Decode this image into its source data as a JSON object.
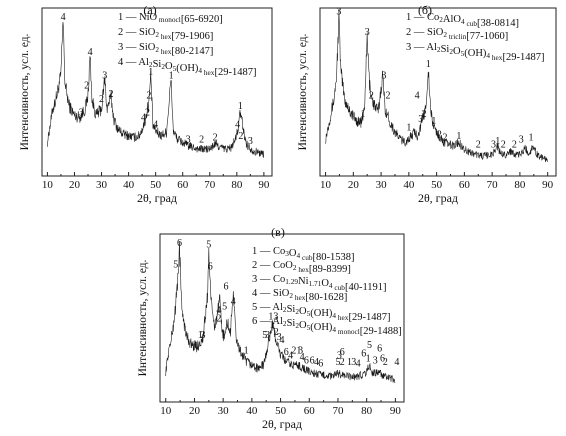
{
  "chart_data": [
    {
      "type": "line",
      "panel_label": "(а)",
      "xlabel": "2θ, град",
      "ylabel": "Интенсивность, усл. ед.",
      "xlim": [
        8,
        93
      ],
      "ylim": [
        0,
        100
      ],
      "y_ticks_shown": false,
      "x_ticks": [
        "10",
        "20",
        "30",
        "40",
        "50",
        "60",
        "70",
        "80",
        "90"
      ],
      "grid": false,
      "legend_position": "top-right",
      "legend": [
        {
          "num": "1",
          "dash": "—",
          "formula": "NiO",
          "sub": "monocl",
          "card": "[65-6920]"
        },
        {
          "num": "2",
          "dash": "—",
          "formula": "SiO",
          "sub2": "2",
          "sub": "hex",
          "card": "[79-1906]"
        },
        {
          "num": "3",
          "dash": "—",
          "formula": "SiO",
          "sub2": "2",
          "sub": "hex",
          "card": "[80-2147]"
        },
        {
          "num": "4",
          "dash": "—",
          "formula": "Al2Si2O5(OH)4",
          "sub": "hex",
          "card": "[29-1487]"
        }
      ],
      "pattern": [
        [
          10,
          20
        ],
        [
          12,
          40
        ],
        [
          13,
          45
        ],
        [
          14,
          52
        ],
        [
          15,
          60
        ],
        [
          15.8,
          93
        ],
        [
          16.5,
          55
        ],
        [
          18,
          42
        ],
        [
          20,
          36
        ],
        [
          22,
          35
        ],
        [
          24,
          40
        ],
        [
          25,
          48
        ],
        [
          25.8,
          72
        ],
        [
          26.5,
          45
        ],
        [
          28,
          36
        ],
        [
          30,
          40
        ],
        [
          31.2,
          58
        ],
        [
          32,
          40
        ],
        [
          33.5,
          47
        ],
        [
          34.5,
          34
        ],
        [
          36,
          28
        ],
        [
          38,
          25
        ],
        [
          40,
          24
        ],
        [
          42,
          23
        ],
        [
          44,
          24
        ],
        [
          45,
          28
        ],
        [
          46,
          32
        ],
        [
          47.5,
          44
        ],
        [
          48.2,
          60
        ],
        [
          49,
          30
        ],
        [
          50,
          27
        ],
        [
          52,
          24
        ],
        [
          54,
          26
        ],
        [
          55.7,
          58
        ],
        [
          56.5,
          27
        ],
        [
          58,
          22
        ],
        [
          60,
          20
        ],
        [
          62,
          18
        ],
        [
          64,
          17
        ],
        [
          66,
          16
        ],
        [
          68,
          16
        ],
        [
          70,
          16
        ],
        [
          72,
          19
        ],
        [
          74,
          17
        ],
        [
          76,
          16
        ],
        [
          78,
          17
        ],
        [
          79.5,
          22
        ],
        [
          80.5,
          28
        ],
        [
          81.3,
          38
        ],
        [
          82,
          32
        ],
        [
          83,
          22
        ],
        [
          84,
          18
        ],
        [
          86,
          15
        ],
        [
          88,
          14
        ],
        [
          90,
          13
        ]
      ],
      "peak_labels": [
        {
          "text": "4",
          "x": 15.8,
          "y": 93
        },
        {
          "text": "4",
          "x": 25.8,
          "y": 72
        },
        {
          "text": "3",
          "x": 31.2,
          "y": 58
        },
        {
          "text": "1",
          "x": 55.7,
          "y": 58
        },
        {
          "text": "1",
          "x": 48.2,
          "y": 60
        },
        {
          "text": "2",
          "x": 24.5,
          "y": 52
        },
        {
          "text": "2",
          "x": 30,
          "y": 44
        },
        {
          "text": "2",
          "x": 33.5,
          "y": 47
        },
        {
          "text": "2",
          "x": 47.5,
          "y": 46
        },
        {
          "text": "3",
          "x": 22.5,
          "y": 36
        },
        {
          "text": "4",
          "x": 45.5,
          "y": 33
        },
        {
          "text": "2",
          "x": 47,
          "y": 36
        },
        {
          "text": "4",
          "x": 50,
          "y": 29
        },
        {
          "text": "1",
          "x": 81.3,
          "y": 40
        },
        {
          "text": "4",
          "x": 80.3,
          "y": 29
        },
        {
          "text": "2",
          "x": 81.5,
          "y": 22
        },
        {
          "text": "3",
          "x": 62,
          "y": 20
        },
        {
          "text": "2",
          "x": 67,
          "y": 20
        },
        {
          "text": "2",
          "x": 72,
          "y": 21
        },
        {
          "text": "3",
          "x": 85,
          "y": 19
        }
      ]
    },
    {
      "type": "line",
      "panel_label": "(б)",
      "xlabel": "2θ, град",
      "ylabel": "Интенсивность, усл. ед.",
      "xlim": [
        8,
        93
      ],
      "ylim": [
        0,
        100
      ],
      "y_ticks_shown": false,
      "x_ticks": [
        "10",
        "20",
        "30",
        "40",
        "50",
        "60",
        "70",
        "80",
        "90"
      ],
      "grid": false,
      "legend_position": "top-right",
      "legend": [
        {
          "num": "1",
          "dash": "—",
          "formula": "Co2AlO4",
          "sub": "cub",
          "card": "[38-0814]"
        },
        {
          "num": "2",
          "dash": "—",
          "formula": "SiO",
          "sub2": "2",
          "sub": "triclin",
          "card": "[77-1060]"
        },
        {
          "num": "3",
          "dash": "—",
          "formula": "Al2Si2O5(OH)4",
          "sub": "hex",
          "card": "[29-1487]"
        }
      ],
      "pattern": [
        [
          10,
          22
        ],
        [
          12,
          38
        ],
        [
          13,
          45
        ],
        [
          14,
          60
        ],
        [
          14.8,
          95
        ],
        [
          15.5,
          62
        ],
        [
          17,
          45
        ],
        [
          19,
          38
        ],
        [
          21,
          33
        ],
        [
          23,
          32
        ],
        [
          24,
          40
        ],
        [
          25,
          82
        ],
        [
          25.8,
          55
        ],
        [
          27,
          44
        ],
        [
          29,
          38
        ],
        [
          30.5,
          60
        ],
        [
          31.5,
          40
        ],
        [
          33,
          33
        ],
        [
          35,
          26
        ],
        [
          37,
          22
        ],
        [
          38.5,
          20
        ],
        [
          40,
          22
        ],
        [
          42,
          26
        ],
        [
          43,
          24
        ],
        [
          44,
          28
        ],
        [
          45,
          34
        ],
        [
          46,
          40
        ],
        [
          47,
          63
        ],
        [
          47.8,
          40
        ],
        [
          48.5,
          32
        ],
        [
          50,
          26
        ],
        [
          52,
          21
        ],
        [
          54,
          19
        ],
        [
          56,
          18
        ],
        [
          58,
          20
        ],
        [
          60,
          16
        ],
        [
          62,
          14
        ],
        [
          64,
          13
        ],
        [
          66,
          12
        ],
        [
          68,
          12
        ],
        [
          70,
          13
        ],
        [
          72,
          18
        ],
        [
          73,
          13
        ],
        [
          75,
          13
        ],
        [
          77,
          15
        ],
        [
          79,
          12
        ],
        [
          81,
          14
        ],
        [
          82,
          17
        ],
        [
          83,
          13
        ],
        [
          85,
          18
        ],
        [
          86,
          13
        ],
        [
          88,
          11
        ],
        [
          90,
          10
        ]
      ],
      "peak_labels": [
        {
          "text": "3",
          "x": 14.8,
          "y": 96
        },
        {
          "text": "3",
          "x": 25,
          "y": 84
        },
        {
          "text": "3",
          "x": 31,
          "y": 58
        },
        {
          "text": "2",
          "x": 26.5,
          "y": 46
        },
        {
          "text": "2",
          "x": 32.5,
          "y": 46
        },
        {
          "text": "1",
          "x": 23.5,
          "y": 35
        },
        {
          "text": "4",
          "x": 43,
          "y": 46
        },
        {
          "text": "1",
          "x": 47,
          "y": 65
        },
        {
          "text": "1",
          "x": 40,
          "y": 27
        },
        {
          "text": "3",
          "x": 44.3,
          "y": 32
        },
        {
          "text": "2",
          "x": 45.5,
          "y": 35
        },
        {
          "text": "1",
          "x": 49,
          "y": 31
        },
        {
          "text": "2",
          "x": 51,
          "y": 23
        },
        {
          "text": "2",
          "x": 53,
          "y": 21
        },
        {
          "text": "1",
          "x": 58,
          "y": 22
        },
        {
          "text": "2",
          "x": 65,
          "y": 17
        },
        {
          "text": "3",
          "x": 70.5,
          "y": 17
        },
        {
          "text": "1",
          "x": 72,
          "y": 19
        },
        {
          "text": "2",
          "x": 74,
          "y": 17
        },
        {
          "text": "2",
          "x": 78,
          "y": 17
        },
        {
          "text": "3",
          "x": 80.5,
          "y": 20
        },
        {
          "text": "1",
          "x": 84,
          "y": 21
        }
      ]
    },
    {
      "type": "line",
      "panel_label": "(в)",
      "xlabel": "2θ, град",
      "ylabel": "Интенсивность, усл. ед.",
      "xlim": [
        8,
        93
      ],
      "ylim": [
        0,
        100
      ],
      "y_ticks_shown": false,
      "x_ticks": [
        "10",
        "20",
        "30",
        "40",
        "50",
        "60",
        "70",
        "80",
        "90"
      ],
      "grid": false,
      "legend_position": "top-right",
      "legend": [
        {
          "num": "1",
          "dash": "—",
          "formula": "Co3O4",
          "sub": "cub",
          "card": "[80-1538]"
        },
        {
          "num": "2",
          "dash": "—",
          "formula": "CoO2",
          "sub": "hex",
          "card": "[89-8399]"
        },
        {
          "num": "3",
          "dash": "—",
          "formula": "Co1.29Ni1.71O4",
          "sub": "cub",
          "card": "[40-1191]"
        },
        {
          "num": "4",
          "dash": "—",
          "formula": "SiO",
          "sub2": "2",
          "sub": "hex",
          "card": "[80-1628]"
        },
        {
          "num": "5",
          "dash": "—",
          "formula": "Al2Si2O5(OH)4",
          "sub": "hex",
          "card": "[29-1487]"
        },
        {
          "num": "6",
          "dash": "—",
          "formula": "Al2Si2O5(OH)4",
          "sub": "monocl",
          "card": "[29-1488]"
        }
      ],
      "pattern": [
        [
          10,
          18
        ],
        [
          11,
          30
        ],
        [
          12,
          38
        ],
        [
          13,
          50
        ],
        [
          14,
          68
        ],
        [
          14.8,
          92
        ],
        [
          15.5,
          58
        ],
        [
          17,
          40
        ],
        [
          19,
          34
        ],
        [
          21,
          33
        ],
        [
          23,
          38
        ],
        [
          24.5,
          62
        ],
        [
          25,
          90
        ],
        [
          26,
          55
        ],
        [
          27,
          45
        ],
        [
          28,
          52
        ],
        [
          28.8,
          60
        ],
        [
          29.5,
          44
        ],
        [
          30.5,
          38
        ],
        [
          31.5,
          48
        ],
        [
          32.5,
          40
        ],
        [
          33.5,
          66
        ],
        [
          34.5,
          38
        ],
        [
          36,
          30
        ],
        [
          38,
          24
        ],
        [
          40,
          22
        ],
        [
          42,
          20
        ],
        [
          44,
          22
        ],
        [
          45,
          28
        ],
        [
          46,
          38
        ],
        [
          47,
          46
        ],
        [
          48,
          40
        ],
        [
          49,
          34
        ],
        [
          50,
          28
        ],
        [
          52,
          24
        ],
        [
          54,
          22
        ],
        [
          56,
          22
        ],
        [
          58,
          20
        ],
        [
          60,
          18
        ],
        [
          62,
          17
        ],
        [
          64,
          16
        ],
        [
          66,
          16
        ],
        [
          68,
          15
        ],
        [
          70,
          17
        ],
        [
          72,
          16
        ],
        [
          74,
          15
        ],
        [
          76,
          15
        ],
        [
          78,
          16
        ],
        [
          80,
          18
        ],
        [
          81,
          22
        ],
        [
          82,
          17
        ],
        [
          84,
          18
        ],
        [
          86,
          15
        ],
        [
          88,
          14
        ],
        [
          90,
          13
        ]
      ],
      "peak_labels": [
        {
          "text": "6",
          "x": 14.8,
          "y": 93
        },
        {
          "text": "5",
          "x": 13.5,
          "y": 80
        },
        {
          "text": "5",
          "x": 25,
          "y": 92
        },
        {
          "text": "6",
          "x": 25.5,
          "y": 79
        },
        {
          "text": "6",
          "x": 31,
          "y": 67
        },
        {
          "text": "4",
          "x": 33.5,
          "y": 58
        },
        {
          "text": "5",
          "x": 30.5,
          "y": 55
        },
        {
          "text": "4",
          "x": 28.5,
          "y": 53
        },
        {
          "text": "2",
          "x": 28.5,
          "y": 48
        },
        {
          "text": "3",
          "x": 23,
          "y": 38
        },
        {
          "text": "1",
          "x": 22,
          "y": 38
        },
        {
          "text": "1",
          "x": 38,
          "y": 29
        },
        {
          "text": "5",
          "x": 44.5,
          "y": 38
        },
        {
          "text": "3",
          "x": 45.5,
          "y": 38
        },
        {
          "text": "13",
          "x": 47.5,
          "y": 49
        },
        {
          "text": "1",
          "x": 47,
          "y": 44
        },
        {
          "text": "2",
          "x": 48.5,
          "y": 40
        },
        {
          "text": "3",
          "x": 49.5,
          "y": 37
        },
        {
          "text": "4",
          "x": 50.5,
          "y": 35
        },
        {
          "text": "6",
          "x": 52,
          "y": 28
        },
        {
          "text": "4",
          "x": 53.5,
          "y": 26
        },
        {
          "text": "21",
          "x": 55.5,
          "y": 29
        },
        {
          "text": "3",
          "x": 57,
          "y": 29
        },
        {
          "text": "4",
          "x": 57.5,
          "y": 25
        },
        {
          "text": "6",
          "x": 59,
          "y": 23
        },
        {
          "text": "6",
          "x": 61,
          "y": 23
        },
        {
          "text": "4",
          "x": 62.5,
          "y": 22
        },
        {
          "text": "6",
          "x": 64,
          "y": 21
        },
        {
          "text": "3",
          "x": 70.5,
          "y": 26
        },
        {
          "text": "6",
          "x": 71.5,
          "y": 28
        },
        {
          "text": "5",
          "x": 70,
          "y": 22
        },
        {
          "text": "2",
          "x": 71.5,
          "y": 22
        },
        {
          "text": "1",
          "x": 74,
          "y": 22
        },
        {
          "text": "3",
          "x": 75.5,
          "y": 22
        },
        {
          "text": "4",
          "x": 77,
          "y": 21
        },
        {
          "text": "6",
          "x": 79,
          "y": 27
        },
        {
          "text": "5",
          "x": 81,
          "y": 32
        },
        {
          "text": "6",
          "x": 84.5,
          "y": 30
        },
        {
          "text": "1",
          "x": 80.5,
          "y": 24
        },
        {
          "text": "3",
          "x": 83,
          "y": 23
        },
        {
          "text": "6",
          "x": 85.5,
          "y": 24
        },
        {
          "text": "2",
          "x": 86.5,
          "y": 22
        },
        {
          "text": "4",
          "x": 90.5,
          "y": 22
        }
      ]
    }
  ]
}
